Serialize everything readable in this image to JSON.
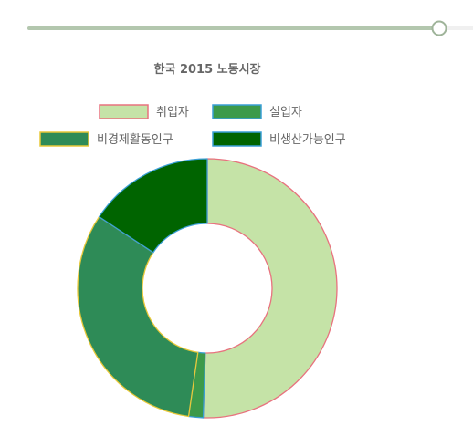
{
  "slider": {
    "value_fraction": 0.94,
    "track_color": "#b3c7ae",
    "rest_color": "#f0f0f0",
    "handle_border": "#9fb49a"
  },
  "chart_data": {
    "type": "doughnut",
    "title": "한국 2015 노동시장",
    "legend_position": "top",
    "labels": [
      "취업자",
      "실업자",
      "비경제활동인구",
      "비생산가능인구"
    ],
    "values": [
      50.5,
      1.8,
      32.0,
      15.7
    ],
    "colors": {
      "fill": [
        "#c5e3a7",
        "#3c9a4a",
        "#2e8b57",
        "#006400"
      ],
      "border": [
        "#e8727e",
        "#3a9fd6",
        "#e8c838",
        "#3a9fd6"
      ]
    },
    "text_color": "#666666"
  }
}
